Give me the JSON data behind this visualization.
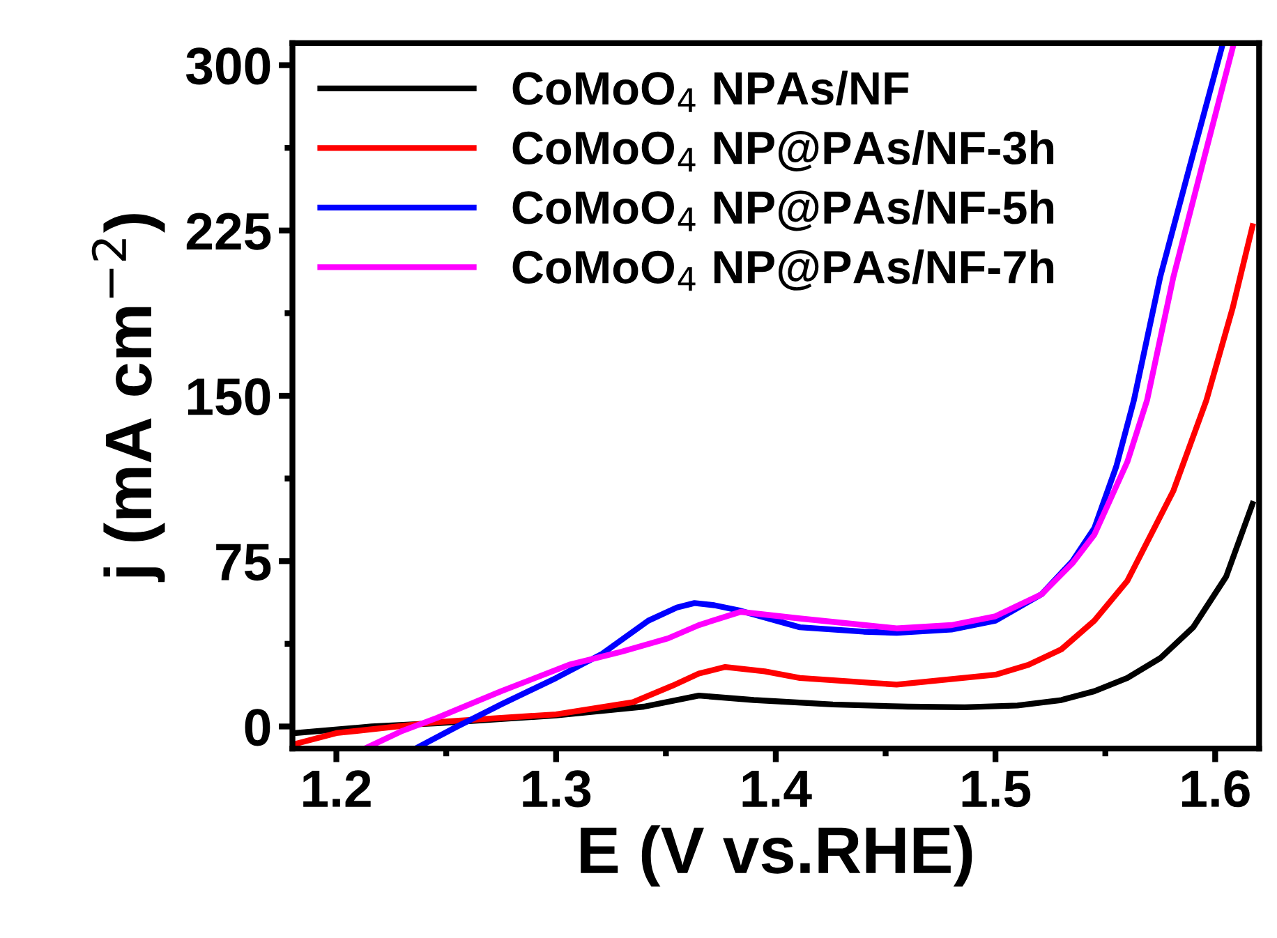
{
  "chart_data": {
    "type": "line",
    "xlabel": "E (V vs.RHE)",
    "ylabel": "j (mA cm$^{−2}$)",
    "xlim": [
      1.18,
      1.62
    ],
    "ylim": [
      -10,
      310
    ],
    "xticks": [
      1.2,
      1.3,
      1.4,
      1.5,
      1.6
    ],
    "yticks": [
      0,
      75,
      150,
      225,
      300
    ],
    "grid": false,
    "legend": "top left",
    "marker": "none",
    "line_style": "solid",
    "series": [
      {
        "name": "CoMoO$_{4}$ NPAs/NF",
        "color": "#000000",
        "x": [
          1.181,
          1.216,
          1.246,
          1.3,
          1.34,
          1.365,
          1.39,
          1.426,
          1.46,
          1.486,
          1.51,
          1.53,
          1.545,
          1.56,
          1.575,
          1.59,
          1.605,
          1.617
        ],
        "values": [
          -3,
          0,
          1.5,
          5,
          9,
          14,
          12,
          10,
          9,
          8.7,
          9.5,
          12,
          16,
          22,
          31,
          45,
          68,
          101
        ]
      },
      {
        "name": "CoMoO$_{4}$ NP@PAs/NF-3h",
        "color": "#ff0000",
        "x": [
          1.181,
          1.2,
          1.246,
          1.3,
          1.335,
          1.353,
          1.365,
          1.377,
          1.395,
          1.411,
          1.455,
          1.5,
          1.515,
          1.53,
          1.545,
          1.56,
          1.581,
          1.596,
          1.608,
          1.617
        ],
        "values": [
          -8,
          -3,
          2,
          5.5,
          11,
          18.5,
          24,
          27,
          25,
          22,
          19,
          23.5,
          28,
          35,
          48,
          66,
          107,
          148,
          190,
          227
        ]
      },
      {
        "name": "CoMoO$_{4}$ NP@PAs/NF-5h",
        "color": "#0000ff",
        "x": [
          1.236,
          1.255,
          1.275,
          1.3,
          1.321,
          1.342,
          1.355,
          1.363,
          1.372,
          1.384,
          1.411,
          1.44,
          1.455,
          1.48,
          1.5,
          1.521,
          1.535,
          1.545,
          1.555,
          1.563,
          1.575,
          1.59,
          1.603
        ],
        "values": [
          -10,
          0,
          10,
          22,
          33,
          48,
          54,
          56,
          55,
          52.5,
          45,
          43,
          42.5,
          44,
          48,
          60,
          75,
          90,
          118,
          148,
          204,
          260,
          308
        ]
      },
      {
        "name": "CoMoO$_{4}$ NP@PAs/NF-7h",
        "color": "#ff00ff",
        "x": [
          1.213,
          1.23,
          1.246,
          1.275,
          1.306,
          1.33,
          1.351,
          1.365,
          1.384,
          1.411,
          1.455,
          1.48,
          1.5,
          1.521,
          1.535,
          1.545,
          1.56,
          1.569,
          1.581,
          1.595,
          1.608
        ],
        "values": [
          -10,
          -2,
          4,
          16,
          28,
          34,
          40,
          46,
          52,
          49,
          44.5,
          46,
          50,
          60,
          74,
          87,
          120,
          148,
          204,
          258,
          308
        ]
      }
    ]
  }
}
